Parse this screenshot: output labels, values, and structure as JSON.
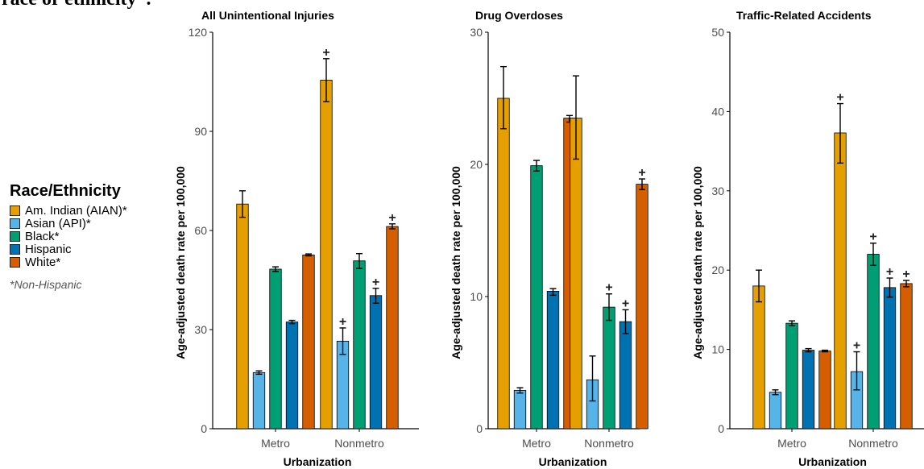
{
  "page_title": "race or ethnicity*.",
  "legend": {
    "title": "Race/Ethnicity",
    "entries": [
      {
        "label": "Am. Indian (AIAN)*",
        "color": "#E69F00"
      },
      {
        "label": "Asian (API)*",
        "color": "#56B4E9"
      },
      {
        "label": "Black*",
        "color": "#009E73"
      },
      {
        "label": "Hispanic",
        "color": "#0072B2"
      },
      {
        "label": "White*",
        "color": "#D55E00"
      }
    ],
    "note": "*Non-Hispanic"
  },
  "chart_data": [
    {
      "type": "bar",
      "title": "All Unintentional Injuries",
      "xlabel": "Urbanization",
      "ylabel": "Age-adjusted death rate per 100,000",
      "ylim": [
        0,
        120
      ],
      "yticks": [
        0,
        30,
        60,
        90,
        120
      ],
      "categories": [
        "Metro",
        "Nonmetro"
      ],
      "series": [
        {
          "name": "Am. Indian (AIAN)*",
          "values": [
            68,
            105.5
          ],
          "err_low": [
            64,
            99
          ],
          "err_high": [
            72,
            112
          ],
          "plus": [
            false,
            true
          ]
        },
        {
          "name": "Asian (API)*",
          "values": [
            17,
            26.5
          ],
          "err_low": [
            16.5,
            22.5
          ],
          "err_high": [
            17.5,
            30.5
          ],
          "plus": [
            false,
            true
          ]
        },
        {
          "name": "Black*",
          "values": [
            48.3,
            50.8
          ],
          "err_low": [
            47.6,
            48.5
          ],
          "err_high": [
            49,
            53
          ],
          "plus": [
            false,
            false
          ]
        },
        {
          "name": "Hispanic",
          "values": [
            32.3,
            40.3
          ],
          "err_low": [
            31.8,
            38
          ],
          "err_high": [
            32.8,
            42.5
          ],
          "plus": [
            false,
            true
          ]
        },
        {
          "name": "White*",
          "values": [
            52.6,
            61.2
          ],
          "err_low": [
            52.3,
            60.5
          ],
          "err_high": [
            52.9,
            62
          ],
          "plus": [
            false,
            true
          ]
        }
      ]
    },
    {
      "type": "bar",
      "title": "Drug Overdoses",
      "xlabel": "Urbanization",
      "ylabel": "Age-adjusted death rate per 100,000",
      "ylim": [
        0,
        30
      ],
      "yticks": [
        0,
        10,
        20,
        30
      ],
      "categories": [
        "Metro",
        "Nonmetro"
      ],
      "series": [
        {
          "name": "Am. Indian (AIAN)*",
          "values": [
            25,
            23.5
          ],
          "err_low": [
            22.7,
            20.4
          ],
          "err_high": [
            27.4,
            26.7
          ],
          "plus": [
            false,
            false
          ]
        },
        {
          "name": "Asian (API)*",
          "values": [
            2.9,
            3.7
          ],
          "err_low": [
            2.7,
            2.1
          ],
          "err_high": [
            3.1,
            5.5
          ],
          "plus": [
            false,
            false
          ]
        },
        {
          "name": "Black*",
          "values": [
            19.9,
            9.2
          ],
          "err_low": [
            19.5,
            8.2
          ],
          "err_high": [
            20.3,
            10.2
          ],
          "plus": [
            false,
            true
          ]
        },
        {
          "name": "Hispanic",
          "values": [
            10.4,
            8.1
          ],
          "err_low": [
            10.1,
            7.2
          ],
          "err_high": [
            10.6,
            9.0
          ],
          "plus": [
            false,
            true
          ]
        },
        {
          "name": "White*",
          "values": [
            23.5,
            18.5
          ],
          "err_low": [
            23.2,
            18.1
          ],
          "err_high": [
            23.7,
            18.9
          ],
          "plus": [
            false,
            true
          ]
        }
      ]
    },
    {
      "type": "bar",
      "title": "Traffic-Related Accidents",
      "xlabel": "Urbanization",
      "ylabel": "Age-adjusted death rate per 100,000",
      "ylim": [
        0,
        50
      ],
      "yticks": [
        0,
        10,
        20,
        30,
        40,
        50
      ],
      "categories": [
        "Metro",
        "Nonmetro"
      ],
      "series": [
        {
          "name": "Am. Indian (AIAN)*",
          "values": [
            18,
            37.3
          ],
          "err_low": [
            16,
            33.5
          ],
          "err_high": [
            20,
            41
          ],
          "plus": [
            false,
            true
          ]
        },
        {
          "name": "Asian (API)*",
          "values": [
            4.6,
            7.2
          ],
          "err_low": [
            4.3,
            4.9
          ],
          "err_high": [
            4.9,
            9.7
          ],
          "plus": [
            false,
            true
          ]
        },
        {
          "name": "Black*",
          "values": [
            13.3,
            22
          ],
          "err_low": [
            13,
            20.6
          ],
          "err_high": [
            13.6,
            23.4
          ],
          "plus": [
            false,
            true
          ]
        },
        {
          "name": "Hispanic",
          "values": [
            9.9,
            17.8
          ],
          "err_low": [
            9.7,
            16.6
          ],
          "err_high": [
            10.1,
            19
          ],
          "plus": [
            false,
            true
          ]
        },
        {
          "name": "White*",
          "values": [
            9.8,
            18.3
          ],
          "err_low": [
            9.7,
            17.9
          ],
          "err_high": [
            9.9,
            18.7
          ],
          "plus": [
            false,
            true
          ]
        }
      ]
    }
  ]
}
